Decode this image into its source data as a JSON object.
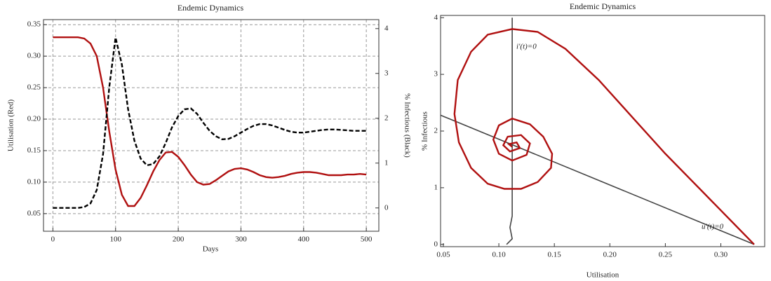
{
  "chart_data": [
    {
      "type": "line",
      "title": "Endemic Dynamics",
      "x_label": "Days",
      "y_label": "Utilisation (Red)",
      "y2_label": "% Infectious (Black)",
      "x": [
        0,
        10,
        20,
        30,
        40,
        50,
        60,
        70,
        80,
        90,
        100,
        110,
        120,
        130,
        140,
        150,
        160,
        170,
        180,
        190,
        200,
        210,
        220,
        230,
        240,
        250,
        260,
        270,
        280,
        290,
        300,
        310,
        320,
        330,
        340,
        350,
        360,
        370,
        380,
        390,
        400,
        410,
        420,
        430,
        440,
        450,
        460,
        470,
        480,
        490,
        500
      ],
      "series": [
        {
          "color": "#b01010",
          "style": "solid",
          "axis": "y",
          "values": [
            0.33,
            0.33,
            0.33,
            0.33,
            0.33,
            0.328,
            0.32,
            0.3,
            0.25,
            0.18,
            0.12,
            0.08,
            0.062,
            0.062,
            0.075,
            0.095,
            0.117,
            0.135,
            0.147,
            0.148,
            0.14,
            0.127,
            0.112,
            0.1,
            0.096,
            0.097,
            0.103,
            0.11,
            0.117,
            0.121,
            0.122,
            0.12,
            0.116,
            0.111,
            0.108,
            0.107,
            0.108,
            0.11,
            0.113,
            0.115,
            0.116,
            0.116,
            0.115,
            0.113,
            0.111,
            0.111,
            0.111,
            0.112,
            0.112,
            0.113,
            0.112
          ]
        },
        {
          "color": "#000000",
          "style": "dashed",
          "axis": "y2",
          "values": [
            0,
            0,
            0,
            0,
            0,
            0.02,
            0.1,
            0.4,
            1.2,
            2.7,
            3.8,
            3.2,
            2.2,
            1.5,
            1.1,
            0.95,
            0.98,
            1.15,
            1.45,
            1.8,
            2.05,
            2.2,
            2.22,
            2.1,
            1.9,
            1.72,
            1.6,
            1.53,
            1.54,
            1.6,
            1.68,
            1.76,
            1.83,
            1.87,
            1.87,
            1.84,
            1.79,
            1.74,
            1.7,
            1.68,
            1.68,
            1.7,
            1.72,
            1.74,
            1.75,
            1.75,
            1.74,
            1.73,
            1.72,
            1.72,
            1.72
          ]
        }
      ],
      "xlim": [
        -15,
        520
      ],
      "xticks": [
        0,
        100,
        200,
        300,
        400,
        500
      ],
      "ylim": [
        0.022,
        0.358
      ],
      "yticks": [
        0.05,
        {
          "value": 0.1,
          "label": "0.10"
        },
        0.15,
        {
          "value": 0.2,
          "label": "0.20"
        },
        0.25,
        {
          "value": 0.3,
          "label": "0.30"
        },
        0.35
      ],
      "y2lim": [
        -0.52,
        4.2
      ],
      "y2ticks": [
        0,
        1,
        2,
        3,
        4
      ],
      "grid": true
    },
    {
      "type": "line",
      "title": "Endemic Dynamics",
      "x_label": "Utilisation",
      "y_label": "% Infectious",
      "annotations": [
        "i'(t)=0",
        "u'(t)=0"
      ],
      "series": [
        {
          "color": "#444444",
          "style": "solid",
          "axis": "y",
          "x": [
            0.107,
            0.112,
            0.11,
            0.112,
            0.112
          ],
          "values": [
            0,
            0.1,
            0.3,
            0.5,
            4
          ]
        },
        {
          "color": "#444444",
          "style": "solid",
          "axis": "y",
          "x": [
            0.0475,
            0.33
          ],
          "values": [
            2.28,
            0
          ]
        },
        {
          "color": "#b01010",
          "style": "solid",
          "axis": "y",
          "x": [
            0.33,
            0.31,
            0.28,
            0.25,
            0.22,
            0.19,
            0.16,
            0.135,
            0.112,
            0.09,
            0.075,
            0.063,
            0.06,
            0.064,
            0.075,
            0.09,
            0.105,
            0.12,
            0.135,
            0.147,
            0.148,
            0.14,
            0.128,
            0.112,
            0.1,
            0.095,
            0.1,
            0.112,
            0.125,
            0.128,
            0.12,
            0.108,
            0.104,
            0.11,
            0.119,
            0.116,
            0.109,
            0.112
          ],
          "values": [
            0,
            0.4,
            1.0,
            1.6,
            2.25,
            2.9,
            3.45,
            3.75,
            3.8,
            3.7,
            3.4,
            2.9,
            2.3,
            1.8,
            1.35,
            1.07,
            0.98,
            0.98,
            1.1,
            1.35,
            1.6,
            1.9,
            2.12,
            2.22,
            2.1,
            1.85,
            1.6,
            1.48,
            1.58,
            1.78,
            1.93,
            1.9,
            1.75,
            1.64,
            1.7,
            1.8,
            1.77,
            1.72
          ]
        }
      ],
      "xlim": [
        0.0475,
        0.3395
      ],
      "xticks": [
        0.05,
        {
          "value": 0.1,
          "label": "0.10"
        },
        0.15,
        {
          "value": 0.2,
          "label": "0.20"
        },
        0.25,
        {
          "value": 0.3,
          "label": "0.30"
        }
      ],
      "ylim": [
        -0.04,
        4.04
      ],
      "yticks": [
        0,
        1,
        2,
        3,
        4
      ],
      "grid": false
    }
  ]
}
